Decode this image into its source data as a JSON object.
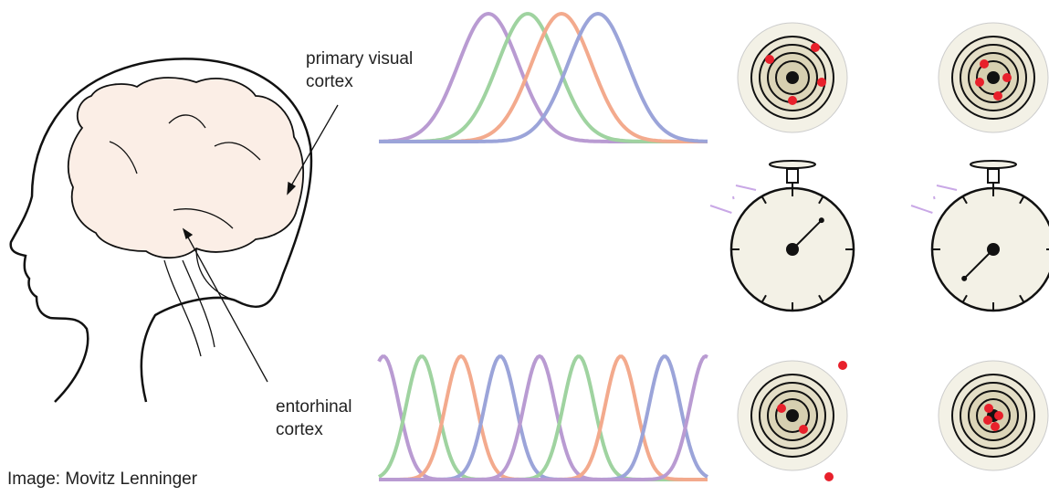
{
  "labels": [
    {
      "lines": [
        "primary visual",
        "cortex"
      ]
    },
    {
      "lines": [
        "entorhinal",
        "cortex"
      ]
    }
  ],
  "credit": "Image: Movitz Lenninger"
}
